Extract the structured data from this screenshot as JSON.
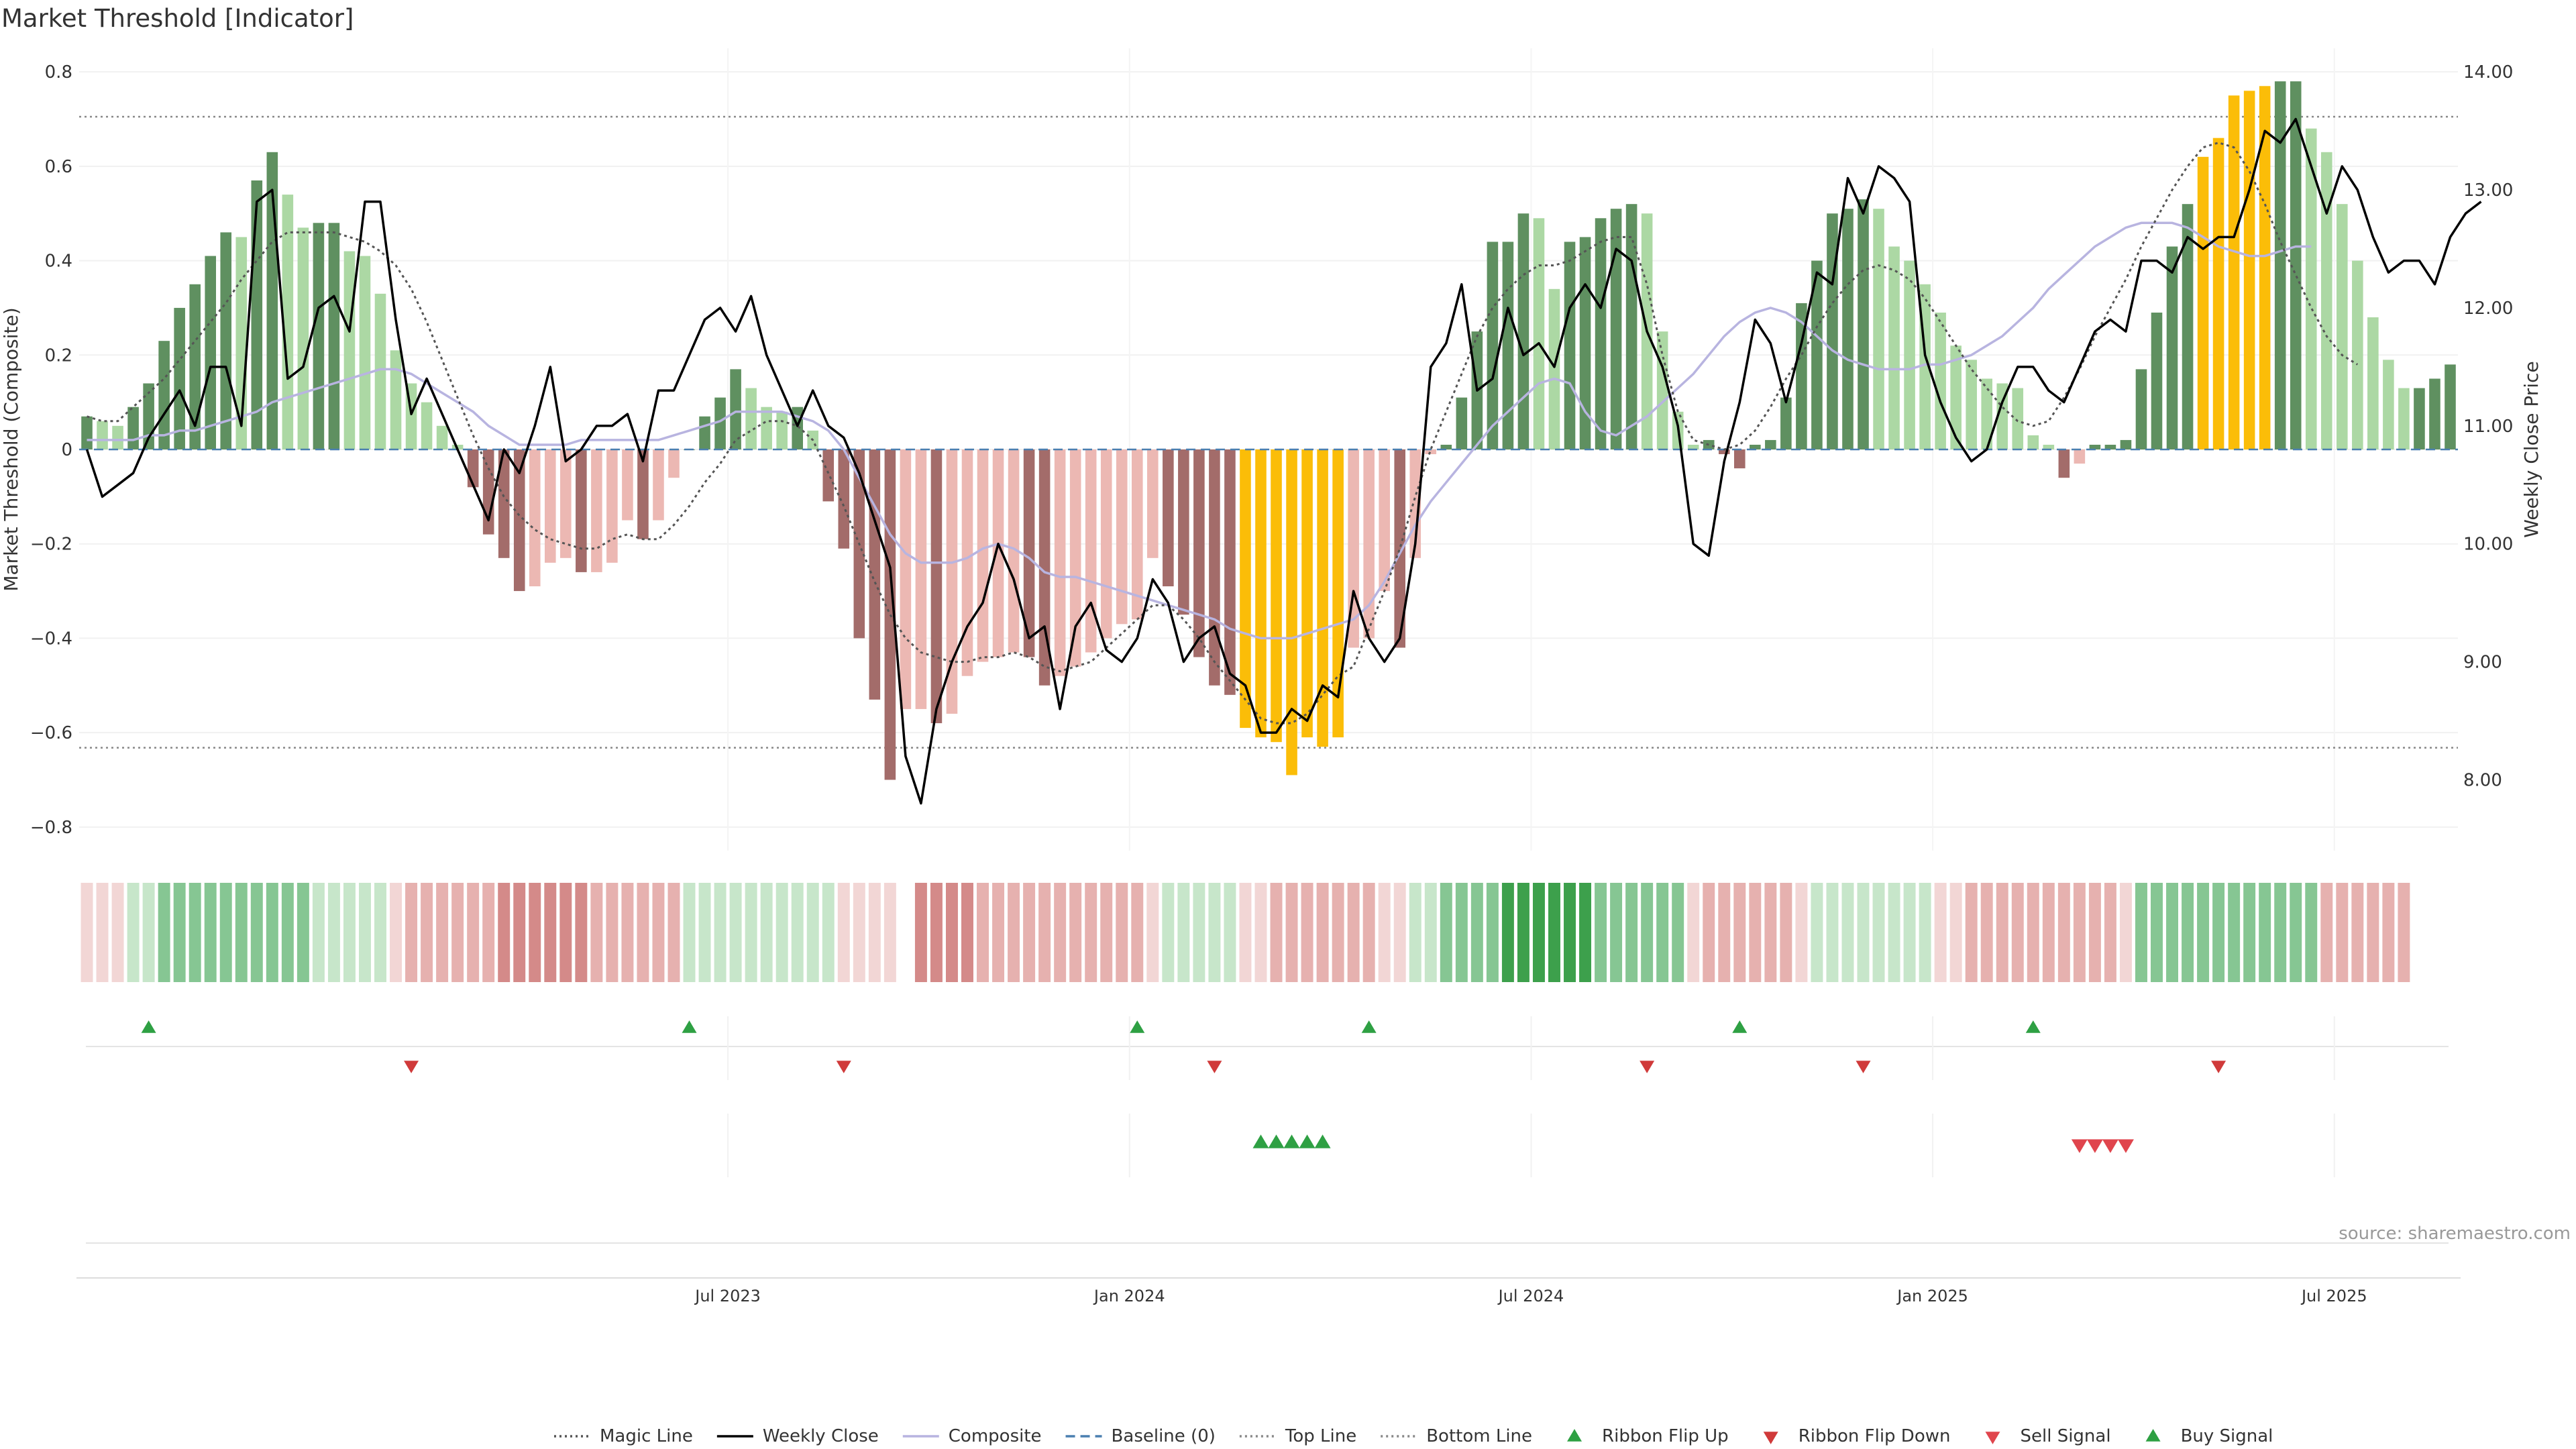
{
  "chart_data": {
    "type": "bar+line",
    "title": "Market Threshold [Indicator]",
    "ylabel": "Market Threshold (Composite)",
    "ylabel_right": "Weekly Close Price",
    "source": "source: sharemaestro.com",
    "ylim": [
      -0.85,
      0.85
    ],
    "ylim_right": [
      7.4,
      14.2
    ],
    "yticks": [
      0.8,
      0.6,
      0.4,
      0.2,
      0,
      -0.2,
      -0.4,
      -0.6,
      -0.8
    ],
    "ytick_labels": [
      "0.8",
      "0.6",
      "0.4",
      "0.2",
      "0",
      "−0.2",
      "−0.4",
      "−0.6",
      "−0.8"
    ],
    "yticks_right": [
      14,
      13,
      12,
      11,
      10,
      9,
      8
    ],
    "ytick_labels_right": [
      "14.00",
      "13.00",
      "12.00",
      "11.00",
      "10.00",
      "9.00",
      "8.00"
    ],
    "xticks": [
      {
        "label": "Jul 2023",
        "week": 42
      },
      {
        "label": "Jan 2024",
        "week": 68
      },
      {
        "label": "Jul 2024",
        "week": 94
      },
      {
        "label": "Jan 2025",
        "week": 120
      },
      {
        "label": "Jul 2025",
        "week": 146
      }
    ],
    "top_line": 0.705,
    "bottom_line": -0.632,
    "composite": [
      0.07,
      0.06,
      0.05,
      0.09,
      0.14,
      0.23,
      0.3,
      0.35,
      0.41,
      0.46,
      0.45,
      0.57,
      0.63,
      0.54,
      0.47,
      0.48,
      0.48,
      0.42,
      0.41,
      0.33,
      0.21,
      0.14,
      0.1,
      0.05,
      0.01,
      -0.08,
      -0.18,
      -0.23,
      -0.3,
      -0.29,
      -0.24,
      -0.23,
      -0.26,
      -0.26,
      -0.24,
      -0.15,
      -0.19,
      -0.15,
      -0.06,
      0,
      0.07,
      0.11,
      0.17,
      0.13,
      0.09,
      0.08,
      0.09,
      0.04,
      -0.11,
      -0.21,
      -0.4,
      -0.53,
      -0.7,
      -0.55,
      -0.55,
      -0.58,
      -0.56,
      -0.48,
      -0.45,
      -0.44,
      -0.43,
      -0.44,
      -0.5,
      -0.48,
      -0.46,
      -0.43,
      -0.4,
      -0.37,
      -0.36,
      -0.23,
      -0.29,
      -0.35,
      -0.44,
      -0.5,
      -0.52,
      -0.59,
      -0.61,
      -0.62,
      -0.69,
      -0.61,
      -0.63,
      -0.61,
      -0.42,
      -0.4,
      -0.3,
      -0.42,
      -0.23,
      -0.01,
      0.01,
      0.11,
      0.25,
      0.44,
      0.44,
      0.5,
      0.49,
      0.34,
      0.44,
      0.45,
      0.49,
      0.51,
      0.52,
      0.5,
      0.25,
      0.08,
      0.01,
      0.02,
      -0.01,
      -0.04,
      0.01,
      0.02,
      0.11,
      0.31,
      0.4,
      0.5,
      0.51,
      0.53,
      0.51,
      0.43,
      0.4,
      0.35,
      0.29,
      0.22,
      0.19,
      0.15,
      0.14,
      0.13,
      0.03,
      0.01,
      -0.06,
      -0.03,
      0.01,
      0.01,
      0.02,
      0.17,
      0.29,
      0.43,
      0.52,
      0.62,
      0.66,
      0.75,
      0.76,
      0.77,
      0.78,
      0.78,
      0.68,
      0.63,
      0.52,
      0.4,
      0.28,
      0.19,
      0.13,
      0.13,
      0.15,
      0.18
    ],
    "bar_colors": {
      "up_strong": "#5f9060",
      "up_weak": "#acd8a4",
      "down_strong": "#a36c6a",
      "down_weak": "#ecb8b3",
      "extreme": "#fbbd08"
    },
    "weekly_close": [
      10.8,
      10.4,
      10.5,
      10.6,
      10.9,
      11.1,
      11.3,
      11.0,
      11.5,
      11.5,
      11.0,
      12.9,
      13.0,
      11.4,
      11.5,
      12.0,
      12.1,
      11.8,
      12.9,
      12.9,
      11.9,
      11.1,
      11.4,
      11.1,
      10.8,
      10.5,
      10.2,
      10.8,
      10.6,
      11.0,
      11.5,
      10.7,
      10.8,
      11.0,
      11.0,
      11.1,
      10.7,
      11.3,
      11.3,
      11.6,
      11.9,
      12.0,
      11.8,
      12.1,
      11.6,
      11.3,
      11.0,
      11.3,
      11.0,
      10.9,
      10.6,
      10.2,
      9.8,
      8.2,
      7.8,
      8.6,
      9.0,
      9.3,
      9.5,
      10.0,
      9.7,
      9.2,
      9.3,
      8.6,
      9.3,
      9.5,
      9.1,
      9.0,
      9.2,
      9.7,
      9.5,
      9.0,
      9.2,
      9.3,
      8.9,
      8.8,
      8.4,
      8.4,
      8.6,
      8.5,
      8.8,
      8.7,
      9.6,
      9.2,
      9.0,
      9.2,
      10.0,
      11.5,
      11.7,
      12.2,
      11.3,
      11.4,
      12.0,
      11.6,
      11.7,
      11.5,
      12.0,
      12.2,
      12.0,
      12.5,
      12.4,
      11.8,
      11.5,
      11.0,
      10.0,
      9.9,
      10.7,
      11.2,
      11.9,
      11.7,
      11.2,
      11.7,
      12.3,
      12.2,
      13.1,
      12.8,
      13.2,
      13.1,
      12.9,
      11.6,
      11.2,
      10.9,
      10.7,
      10.8,
      11.2,
      11.5,
      11.5,
      11.3,
      11.2,
      11.5,
      11.8,
      11.9,
      11.8,
      12.4,
      12.4,
      12.3,
      12.6,
      12.5,
      12.6,
      12.6,
      13.0,
      13.5,
      13.4,
      13.6,
      13.2,
      12.8,
      13.2,
      13.0,
      12.6,
      12.3,
      12.4,
      12.4,
      12.2,
      12.6,
      12.8,
      12.9
    ],
    "magic_line": [
      0.07,
      0.06,
      0.06,
      0.09,
      0.12,
      0.15,
      0.19,
      0.23,
      0.27,
      0.31,
      0.36,
      0.4,
      0.44,
      0.46,
      0.46,
      0.46,
      0.46,
      0.45,
      0.44,
      0.42,
      0.39,
      0.34,
      0.27,
      0.19,
      0.11,
      0.03,
      -0.04,
      -0.1,
      -0.14,
      -0.17,
      -0.19,
      -0.2,
      -0.21,
      -0.21,
      -0.19,
      -0.18,
      -0.19,
      -0.19,
      -0.16,
      -0.12,
      -0.07,
      -0.03,
      0.02,
      0.04,
      0.06,
      0.06,
      0.05,
      0.02,
      -0.05,
      -0.12,
      -0.2,
      -0.28,
      -0.35,
      -0.4,
      -0.43,
      -0.44,
      -0.45,
      -0.45,
      -0.44,
      -0.44,
      -0.43,
      -0.44,
      -0.46,
      -0.47,
      -0.46,
      -0.45,
      -0.42,
      -0.39,
      -0.36,
      -0.33,
      -0.33,
      -0.36,
      -0.4,
      -0.45,
      -0.49,
      -0.53,
      -0.57,
      -0.58,
      -0.58,
      -0.56,
      -0.52,
      -0.48,
      -0.46,
      -0.38,
      -0.3,
      -0.21,
      -0.1,
      0,
      0.08,
      0.16,
      0.24,
      0.3,
      0.34,
      0.37,
      0.39,
      0.39,
      0.4,
      0.42,
      0.44,
      0.45,
      0.45,
      0.35,
      0.2,
      0.08,
      0.02,
      0.01,
      0,
      0.01,
      0.04,
      0.09,
      0.15,
      0.2,
      0.26,
      0.31,
      0.35,
      0.38,
      0.39,
      0.38,
      0.36,
      0.32,
      0.27,
      0.22,
      0.17,
      0.13,
      0.09,
      0.06,
      0.05,
      0.06,
      0.11,
      0.17,
      0.24,
      0.3,
      0.36,
      0.43,
      0.49,
      0.55,
      0.6,
      0.64,
      0.65,
      0.64,
      0.59,
      0.52,
      0.44,
      0.37,
      0.3,
      0.24,
      0.2,
      0.18
    ],
    "composite_smooth": [
      0.02,
      0.02,
      0.02,
      0.02,
      0.03,
      0.03,
      0.04,
      0.04,
      0.05,
      0.06,
      0.07,
      0.08,
      0.1,
      0.11,
      0.12,
      0.13,
      0.14,
      0.15,
      0.16,
      0.17,
      0.17,
      0.16,
      0.14,
      0.12,
      0.1,
      0.08,
      0.05,
      0.03,
      0.01,
      0.01,
      0.01,
      0.01,
      0.02,
      0.02,
      0.02,
      0.02,
      0.02,
      0.02,
      0.03,
      0.04,
      0.05,
      0.06,
      0.08,
      0.08,
      0.08,
      0.08,
      0.07,
      0.06,
      0.04,
      0.0,
      -0.06,
      -0.12,
      -0.18,
      -0.22,
      -0.24,
      -0.24,
      -0.24,
      -0.23,
      -0.21,
      -0.2,
      -0.21,
      -0.23,
      -0.26,
      -0.27,
      -0.27,
      -0.28,
      -0.29,
      -0.3,
      -0.31,
      -0.32,
      -0.33,
      -0.34,
      -0.35,
      -0.36,
      -0.38,
      -0.39,
      -0.4,
      -0.4,
      -0.4,
      -0.39,
      -0.38,
      -0.37,
      -0.36,
      -0.33,
      -0.28,
      -0.22,
      -0.16,
      -0.11,
      -0.07,
      -0.03,
      0.01,
      0.05,
      0.08,
      0.11,
      0.14,
      0.15,
      0.14,
      0.08,
      0.04,
      0.03,
      0.05,
      0.07,
      0.1,
      0.13,
      0.16,
      0.2,
      0.24,
      0.27,
      0.29,
      0.3,
      0.29,
      0.27,
      0.24,
      0.21,
      0.19,
      0.18,
      0.17,
      0.17,
      0.17,
      0.18,
      0.18,
      0.19,
      0.2,
      0.22,
      0.24,
      0.27,
      0.3,
      0.34,
      0.37,
      0.4,
      0.43,
      0.45,
      0.47,
      0.48,
      0.48,
      0.48,
      0.47,
      0.45,
      0.43,
      0.42,
      0.41,
      0.41,
      0.42,
      0.43,
      0.43
    ],
    "baseline": 0,
    "ribbon_levels": [
      -1,
      -1,
      -1,
      1,
      1,
      2,
      2,
      2,
      2,
      2,
      2,
      2,
      2,
      2,
      2,
      1,
      1,
      1,
      1,
      1,
      -1,
      -2,
      -2,
      -2,
      -2,
      -2,
      -2,
      -3,
      -3,
      -3,
      -3,
      -3,
      -3,
      -2,
      -2,
      -2,
      -2,
      -2,
      -2,
      1,
      1,
      1,
      1,
      1,
      1,
      1,
      1,
      1,
      1,
      -1,
      -1,
      -1,
      -1,
      null,
      -3,
      -3,
      -3,
      -3,
      -2,
      -2,
      -2,
      -2,
      -2,
      -2,
      -2,
      -2,
      -2,
      -2,
      -2,
      -1,
      1,
      1,
      1,
      1,
      1,
      -1,
      -1,
      -2,
      -2,
      -2,
      -2,
      -2,
      -2,
      -2,
      -1,
      -1,
      1,
      1,
      2,
      2,
      2,
      2,
      3,
      3,
      3,
      3,
      3,
      3,
      2,
      2,
      2,
      2,
      2,
      2,
      -1,
      -2,
      -2,
      -2,
      -2,
      -2,
      -2,
      -1,
      1,
      1,
      1,
      1,
      1,
      1,
      1,
      1,
      -1,
      -1,
      -2,
      -2,
      -2,
      -2,
      -2,
      -2,
      -2,
      -2,
      -2,
      -2,
      -1,
      2,
      2,
      2,
      2,
      2,
      2,
      2,
      2,
      2,
      2,
      2,
      2,
      -2,
      -2,
      -2,
      -2,
      -2,
      -2
    ],
    "ribbon_colors": {
      "3": "#3da04c",
      "2": "#86c693",
      "1": "#c7e6ca",
      "-1": "#f2d6d5",
      "-2": "#e6b1af",
      "-3": "#d48a89"
    },
    "ribbon_flip_up_weeks": [
      4,
      39,
      68,
      83,
      107,
      126
    ],
    "ribbon_flip_down_weeks": [
      21,
      49,
      73,
      101,
      115,
      138
    ],
    "buy_signal_weeks": [
      76,
      77,
      78,
      79,
      80
    ],
    "sell_signal_weeks": [
      129,
      130,
      131,
      132
    ],
    "legend": [
      {
        "label": "Magic Line",
        "kind": "dotted-line",
        "color": "#555555"
      },
      {
        "label": "Weekly Close",
        "kind": "line",
        "color": "#000000"
      },
      {
        "label": "Composite",
        "kind": "line",
        "color": "#b8b4e0"
      },
      {
        "label": "Baseline (0)",
        "kind": "dashed-line",
        "color": "#4a7fb0"
      },
      {
        "label": "Top Line",
        "kind": "dotted-line",
        "color": "#888888"
      },
      {
        "label": "Bottom Line",
        "kind": "dotted-line",
        "color": "#888888"
      },
      {
        "label": "Ribbon Flip Up",
        "kind": "triangle-up",
        "color": "#2ea043"
      },
      {
        "label": "Ribbon Flip Down",
        "kind": "triangle-down",
        "color": "#d03a3a"
      },
      {
        "label": "Sell Signal",
        "kind": "triangle-down",
        "color": "#e0454d"
      },
      {
        "label": "Buy Signal",
        "kind": "triangle-up",
        "color": "#2ea043"
      }
    ]
  }
}
